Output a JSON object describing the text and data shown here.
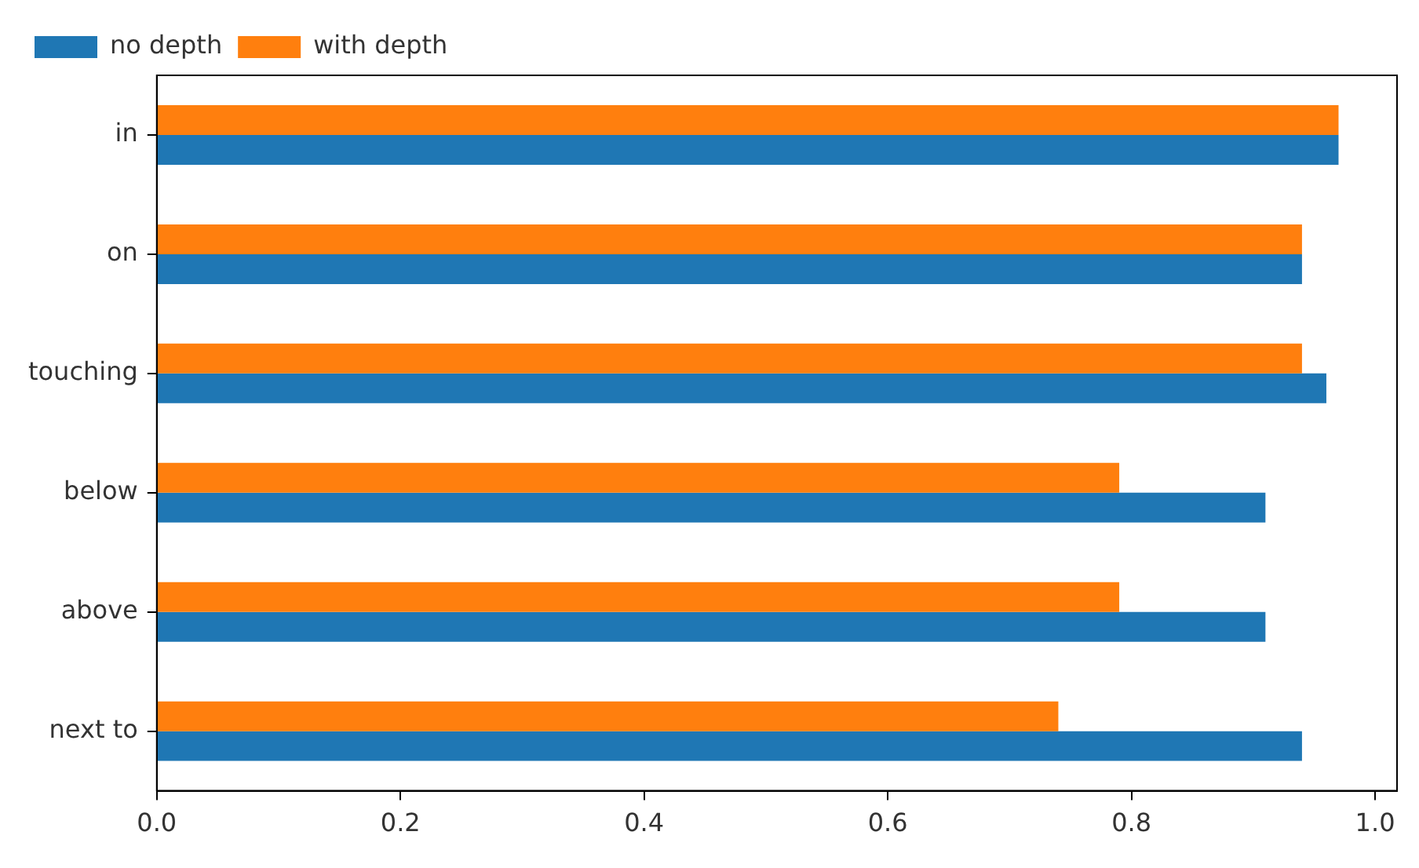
{
  "chart_data": {
    "type": "bar",
    "orientation": "horizontal",
    "categories": [
      "in",
      "on",
      "touching",
      "below",
      "above",
      "next to"
    ],
    "series": [
      {
        "name": "no depth",
        "color": "#1f77b4",
        "values": [
          0.97,
          0.94,
          0.96,
          0.91,
          0.91,
          0.94
        ]
      },
      {
        "name": "with depth",
        "color": "#ff7f0e",
        "values": [
          0.97,
          0.94,
          0.94,
          0.79,
          0.79,
          0.74
        ]
      }
    ],
    "xlim": [
      0,
      1.018
    ],
    "xticks": [
      {
        "value": 0,
        "label": "0.0"
      },
      0.2,
      0.4,
      0.6,
      0.8,
      {
        "value": 1,
        "label": "1.0"
      }
    ],
    "grid": false,
    "legend": "top left"
  }
}
